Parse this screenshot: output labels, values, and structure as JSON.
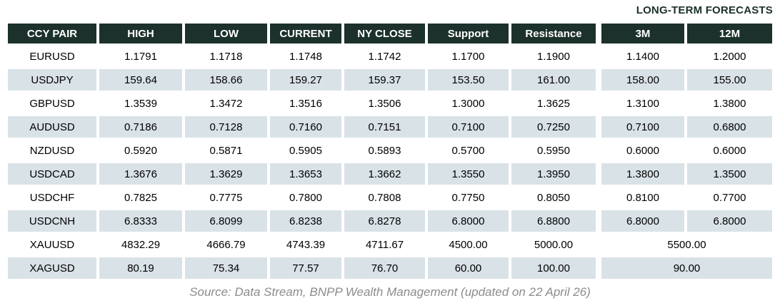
{
  "title": "LONG-TERM FORECASTS",
  "table": {
    "columns": [
      "CCY PAIR",
      "HIGH",
      "LOW",
      "CURRENT",
      "NY CLOSE",
      "Support",
      "Resistance",
      "3M",
      "12M"
    ],
    "rows": [
      {
        "cells": [
          "EURUSD",
          "1.1791",
          "1.1718",
          "1.1748",
          "1.1742",
          "1.1700",
          "1.1900",
          "1.1400",
          "1.2000"
        ]
      },
      {
        "cells": [
          "USDJPY",
          "159.64",
          "158.66",
          "159.27",
          "159.37",
          "153.50",
          "161.00",
          "158.00",
          "155.00"
        ]
      },
      {
        "cells": [
          "GBPUSD",
          "1.3539",
          "1.3472",
          "1.3516",
          "1.3506",
          "1.3000",
          "1.3625",
          "1.3100",
          "1.3800"
        ]
      },
      {
        "cells": [
          "AUDUSD",
          "0.7186",
          "0.7128",
          "0.7160",
          "0.7151",
          "0.7100",
          "0.7250",
          "0.7100",
          "0.6800"
        ]
      },
      {
        "cells": [
          "NZDUSD",
          "0.5920",
          "0.5871",
          "0.5905",
          "0.5893",
          "0.5700",
          "0.5950",
          "0.6000",
          "0.6000"
        ]
      },
      {
        "cells": [
          "USDCAD",
          "1.3676",
          "1.3629",
          "1.3653",
          "1.3662",
          "1.3550",
          "1.3950",
          "1.3800",
          "1.3500"
        ]
      },
      {
        "cells": [
          "USDCHF",
          "0.7825",
          "0.7775",
          "0.7800",
          "0.7808",
          "0.7750",
          "0.8050",
          "0.8100",
          "0.7700"
        ]
      },
      {
        "cells": [
          "USDCNH",
          "6.8333",
          "6.8099",
          "6.8238",
          "6.8278",
          "6.8000",
          "6.8800",
          "6.8000",
          "6.8000"
        ]
      },
      {
        "cells": [
          "XAUUSD",
          "4832.29",
          "4666.79",
          "4743.39",
          "4711.67",
          "4500.00",
          "5000.00",
          "5500.00"
        ],
        "merge_last_two": true
      },
      {
        "cells": [
          "XAGUSD",
          "80.19",
          "75.34",
          "77.57",
          "76.70",
          "60.00",
          "100.00",
          "90.00"
        ],
        "merge_last_two": true
      }
    ]
  },
  "source": "Source: Data Stream, BNPP Wealth Management (updated on 22 April 26)",
  "colors": {
    "header_bg": "#1c312b",
    "header_text": "#ffffff",
    "row_alt_bg": "#d9e2e7",
    "row_bg": "#ffffff",
    "title_text": "#1c312b",
    "source_text": "#8c8c8c"
  }
}
